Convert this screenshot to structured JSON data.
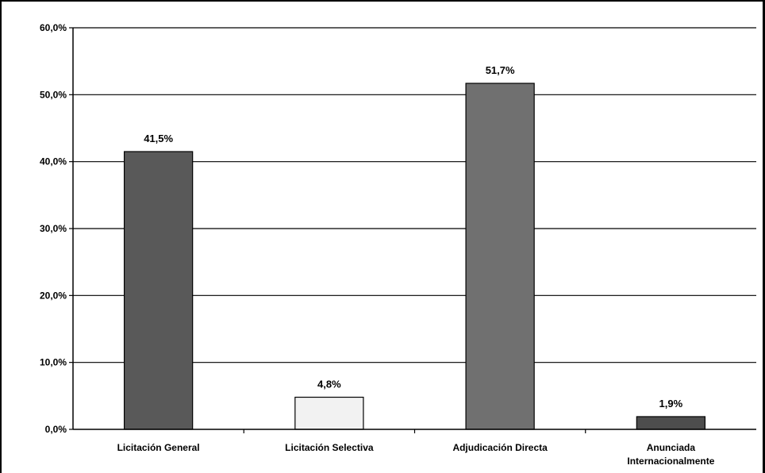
{
  "chart_data": {
    "type": "bar",
    "categories": [
      [
        "Licitación General"
      ],
      [
        "Licitación Selectiva"
      ],
      [
        "Adjudicación Directa"
      ],
      [
        "Anunciada",
        "Internacionalmente"
      ]
    ],
    "values": [
      41.5,
      4.8,
      51.7,
      1.9
    ],
    "value_labels": [
      "41,5%",
      "4,8%",
      "51,7%",
      "1,9%"
    ],
    "bar_colors": [
      "#595959",
      "#f2f2f2",
      "#707070",
      "#4d4d4d"
    ],
    "ylim": [
      0,
      60
    ],
    "yticks": [
      0,
      10,
      20,
      30,
      40,
      50,
      60
    ],
    "ytick_labels": [
      "0,0%",
      "10,0%",
      "20,0%",
      "30,0%",
      "40,0%",
      "50,0%",
      "60,0%"
    ],
    "grid": true,
    "title": "",
    "xlabel": "",
    "ylabel": ""
  }
}
